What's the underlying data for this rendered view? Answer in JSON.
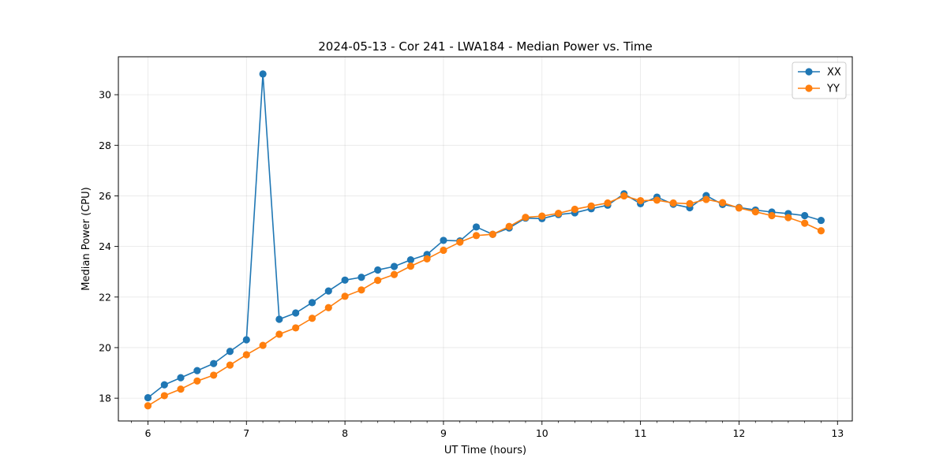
{
  "chart_data": {
    "type": "line",
    "title": "2024-05-13 - Cor 241 - LWA184 - Median Power vs. Time",
    "xlabel": "UT Time (hours)",
    "ylabel": "Median Power (CPU)",
    "xlim": [
      5.7,
      13.15
    ],
    "ylim": [
      17.1,
      31.5
    ],
    "xticks": [
      6,
      7,
      8,
      9,
      10,
      11,
      12,
      13
    ],
    "yticks": [
      18,
      20,
      22,
      24,
      26,
      28,
      30
    ],
    "grid": true,
    "legend_position": "top-right",
    "x": [
      6.0,
      6.167,
      6.333,
      6.5,
      6.667,
      6.833,
      7.0,
      7.167,
      7.333,
      7.5,
      7.667,
      7.833,
      8.0,
      8.167,
      8.333,
      8.5,
      8.667,
      8.833,
      9.0,
      9.167,
      9.333,
      9.5,
      9.667,
      9.833,
      10.0,
      10.167,
      10.333,
      10.5,
      10.667,
      10.833,
      11.0,
      11.167,
      11.333,
      11.5,
      11.667,
      11.833,
      12.0,
      12.167,
      12.333,
      12.5,
      12.667,
      12.833
    ],
    "series": [
      {
        "name": "XX",
        "color": "#1f77b4",
        "values": [
          18.02,
          18.53,
          18.81,
          19.09,
          19.37,
          19.85,
          20.31,
          30.82,
          21.12,
          21.37,
          21.78,
          22.24,
          22.67,
          22.78,
          23.07,
          23.21,
          23.47,
          23.68,
          24.24,
          24.22,
          24.77,
          24.48,
          24.73,
          25.12,
          25.1,
          25.26,
          25.33,
          25.49,
          25.63,
          26.08,
          25.69,
          25.95,
          25.67,
          25.53,
          26.01,
          25.66,
          25.54,
          25.44,
          25.36,
          25.3,
          25.22,
          25.03
        ]
      },
      {
        "name": "YY",
        "color": "#ff7f0e",
        "values": [
          17.7,
          18.1,
          18.36,
          18.68,
          18.91,
          19.31,
          19.72,
          20.09,
          20.53,
          20.78,
          21.16,
          21.58,
          22.03,
          22.28,
          22.66,
          22.89,
          23.22,
          23.51,
          23.85,
          24.17,
          24.43,
          24.48,
          24.79,
          25.15,
          25.2,
          25.31,
          25.47,
          25.6,
          25.72,
          26.0,
          25.81,
          25.83,
          25.72,
          25.69,
          25.86,
          25.73,
          25.52,
          25.37,
          25.22,
          25.14,
          24.92,
          24.62
        ]
      }
    ]
  }
}
